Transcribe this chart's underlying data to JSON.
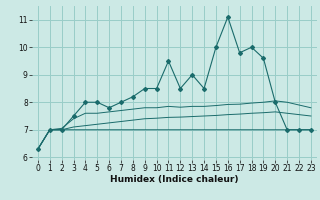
{
  "xlabel": "Humidex (Indice chaleur)",
  "xlim": [
    -0.5,
    23.5
  ],
  "ylim": [
    5.9,
    11.5
  ],
  "yticks": [
    6,
    7,
    8,
    9,
    10,
    11
  ],
  "xticks": [
    0,
    1,
    2,
    3,
    4,
    5,
    6,
    7,
    8,
    9,
    10,
    11,
    12,
    13,
    14,
    15,
    16,
    17,
    18,
    19,
    20,
    21,
    22,
    23
  ],
  "bg_color": "#cce9e5",
  "grid_color": "#99cdc8",
  "line_color": "#1a6b6b",
  "series": {
    "main": [
      6.3,
      7.0,
      7.0,
      7.5,
      8.0,
      8.0,
      7.8,
      8.0,
      8.2,
      8.5,
      8.5,
      9.5,
      8.5,
      9.0,
      8.5,
      10.0,
      11.1,
      9.8,
      10.0,
      9.6,
      8.0,
      7.0,
      7.0,
      7.0
    ],
    "smooth1": [
      6.3,
      7.0,
      7.05,
      7.4,
      7.6,
      7.6,
      7.65,
      7.7,
      7.75,
      7.8,
      7.8,
      7.85,
      7.82,
      7.85,
      7.85,
      7.88,
      7.92,
      7.93,
      7.97,
      8.0,
      8.05,
      8.0,
      7.9,
      7.8
    ],
    "smooth2": [
      6.3,
      7.0,
      7.0,
      7.1,
      7.15,
      7.2,
      7.25,
      7.3,
      7.35,
      7.4,
      7.42,
      7.45,
      7.46,
      7.48,
      7.5,
      7.52,
      7.55,
      7.57,
      7.6,
      7.62,
      7.65,
      7.6,
      7.55,
      7.5
    ],
    "flat": [
      6.3,
      7.0,
      7.0,
      7.0,
      7.0,
      7.0,
      7.0,
      7.0,
      7.0,
      7.0,
      7.0,
      7.0,
      7.0,
      7.0,
      7.0,
      7.0,
      7.0,
      7.0,
      7.0,
      7.0,
      7.0,
      7.0,
      7.0,
      7.0
    ]
  },
  "figsize": [
    3.2,
    2.0
  ],
  "dpi": 100
}
